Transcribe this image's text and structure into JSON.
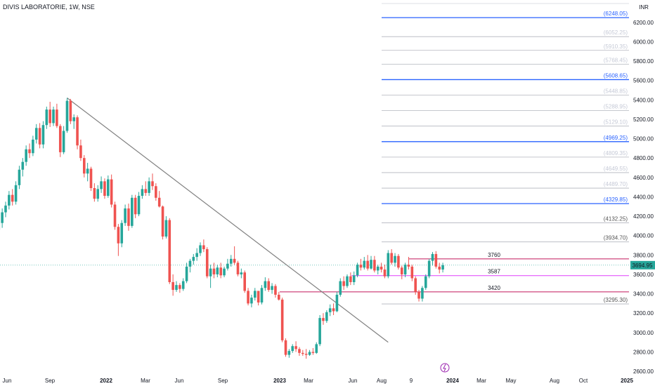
{
  "header": {
    "title": "DIVIS LABORATORIE, 1W, NSE",
    "currency": "INR"
  },
  "colors": {
    "up": "#26a69a",
    "down": "#ef5350",
    "fib_blue": "#2962ff",
    "trend": "#808080",
    "magenta": "#e040fb",
    "crimson": "#c2185b"
  },
  "chart_data": {
    "type": "candlestick",
    "title": "DIVIS LABORATORIE, 1W, NSE",
    "ylim": [
      2600,
      6350
    ],
    "y_ticks": [
      2600,
      2800,
      3000,
      3200,
      3400,
      3600,
      3800,
      4000,
      4200,
      4400,
      4600,
      4800,
      5000,
      5200,
      5400,
      5600,
      5800,
      6000,
      6200
    ],
    "y_tick_labels": [
      "2600.00",
      "2800.00",
      "3000.00",
      "3200.00",
      "3400.00",
      "3600.00",
      "3800.00",
      "4000.00",
      "4200.00",
      "4400.00",
      "4600.00",
      "4800.00",
      "5000.00",
      "5200.00",
      "5400.00",
      "5600.00",
      "5800.00",
      "6000.00",
      "6200.00"
    ],
    "x_ticks": [
      "Jun",
      "Sep",
      "2022",
      "Mar",
      "Jun",
      "Sep",
      "2023",
      "Mar",
      "Jun",
      "Aug",
      "9",
      "2024",
      "Mar",
      "May",
      "Aug",
      "Oct",
      "2025"
    ],
    "bold_x_ticks": [
      "2022",
      "2023",
      "2024",
      "2025"
    ],
    "last_price": "3694.95",
    "horizontal_levels": [
      {
        "label": "3760",
        "value": 3760,
        "color": "#c2185b"
      },
      {
        "label": "3587",
        "value": 3587,
        "color": "#e040fb"
      },
      {
        "label": "3420",
        "value": 3420,
        "color": "#c2185b"
      }
    ],
    "fib_levels": [
      {
        "label": "(6248.05)",
        "value": 6248.05,
        "prominent": true
      },
      {
        "label": "(6052.25)",
        "value": 6052.25,
        "prominent": false
      },
      {
        "label": "(5910.35)",
        "value": 5910.35,
        "prominent": false
      },
      {
        "label": "(5768.45)",
        "value": 5768.45,
        "prominent": false
      },
      {
        "label": "(5608.65)",
        "value": 5608.65,
        "prominent": true
      },
      {
        "label": "(5448.85)",
        "value": 5448.85,
        "prominent": false
      },
      {
        "label": "(5288.95)",
        "value": 5288.95,
        "prominent": false
      },
      {
        "label": "(5129.10)",
        "value": 5129.1,
        "prominent": false
      },
      {
        "label": "(4969.25)",
        "value": 4969.25,
        "prominent": true
      },
      {
        "label": "(4809.35)",
        "value": 4809.35,
        "prominent": false
      },
      {
        "label": "(4649.55)",
        "value": 4649.55,
        "prominent": false
      },
      {
        "label": "(4489.70)",
        "value": 4489.7,
        "prominent": false
      },
      {
        "label": "(4329.85)",
        "value": 4329.85,
        "prominent": true
      },
      {
        "label": "(4132.25)",
        "value": 4132.25,
        "prominent": false
      },
      {
        "label": "(3934.70)",
        "value": 3934.7,
        "prominent": false
      },
      {
        "label": "(3295.30)",
        "value": 3295.3,
        "prominent": false
      }
    ],
    "trendline": {
      "from": [
        "2021-10-04",
        5420
      ],
      "to": [
        "2023-07-24",
        2900
      ]
    },
    "candles": [
      [
        "2021-05-17",
        4060,
        4180,
        3990,
        4130
      ],
      [
        "2021-05-24",
        4130,
        4280,
        4080,
        4240
      ],
      [
        "2021-05-31",
        4240,
        4350,
        4190,
        4310
      ],
      [
        "2021-06-07",
        4310,
        4460,
        4270,
        4420
      ],
      [
        "2021-06-14",
        4420,
        4480,
        4310,
        4350
      ],
      [
        "2021-06-21",
        4350,
        4560,
        4320,
        4520
      ],
      [
        "2021-06-28",
        4520,
        4720,
        4480,
        4680
      ],
      [
        "2021-07-05",
        4680,
        4800,
        4610,
        4760
      ],
      [
        "2021-07-12",
        4760,
        4930,
        4720,
        4890
      ],
      [
        "2021-07-19",
        4890,
        4950,
        4800,
        4850
      ],
      [
        "2021-07-26",
        4850,
        5030,
        4820,
        4990
      ],
      [
        "2021-08-02",
        4990,
        5150,
        4950,
        5110
      ],
      [
        "2021-08-09",
        5110,
        5160,
        4900,
        4940
      ],
      [
        "2021-08-16",
        4940,
        5180,
        4900,
        5140
      ],
      [
        "2021-08-23",
        5140,
        5330,
        5100,
        5300
      ],
      [
        "2021-08-30",
        5300,
        5380,
        5120,
        5160
      ],
      [
        "2021-09-06",
        5160,
        5330,
        5130,
        5300
      ],
      [
        "2021-09-13",
        5300,
        5360,
        5110,
        5130
      ],
      [
        "2021-09-20",
        5130,
        5150,
        4810,
        4860
      ],
      [
        "2021-09-27",
        4860,
        5130,
        4840,
        5080
      ],
      [
        "2021-10-04",
        5080,
        5420,
        5060,
        5390
      ],
      [
        "2021-10-11",
        5390,
        5410,
        5150,
        5180
      ],
      [
        "2021-10-18",
        5180,
        5250,
        5100,
        5220
      ],
      [
        "2021-10-25",
        5220,
        5240,
        4890,
        4930
      ],
      [
        "2021-11-01",
        4930,
        4990,
        4770,
        4800
      ],
      [
        "2021-11-08",
        4800,
        4830,
        4600,
        4640
      ],
      [
        "2021-11-15",
        4640,
        4750,
        4560,
        4690
      ],
      [
        "2021-11-22",
        4690,
        4710,
        4460,
        4490
      ],
      [
        "2021-11-29",
        4490,
        4540,
        4350,
        4380
      ],
      [
        "2021-12-06",
        4380,
        4520,
        4350,
        4480
      ],
      [
        "2021-12-13",
        4480,
        4610,
        4440,
        4560
      ],
      [
        "2021-12-20",
        4560,
        4590,
        4380,
        4410
      ],
      [
        "2021-12-27",
        4410,
        4620,
        4390,
        4580
      ],
      [
        "2022-01-03",
        4580,
        4630,
        4290,
        4320
      ],
      [
        "2022-01-10",
        4320,
        4350,
        4060,
        4090
      ],
      [
        "2022-01-17",
        4090,
        4120,
        3790,
        3920
      ],
      [
        "2022-01-24",
        3920,
        4160,
        3880,
        4130
      ],
      [
        "2022-01-31",
        4130,
        4320,
        4100,
        4280
      ],
      [
        "2022-02-07",
        4280,
        4330,
        4050,
        4100
      ],
      [
        "2022-02-14",
        4100,
        4420,
        4080,
        4390
      ],
      [
        "2022-02-21",
        4390,
        4420,
        4180,
        4220
      ],
      [
        "2022-02-28",
        4220,
        4450,
        4200,
        4410
      ],
      [
        "2022-03-07",
        4410,
        4520,
        4380,
        4480
      ],
      [
        "2022-03-14",
        4480,
        4560,
        4410,
        4440
      ],
      [
        "2022-03-21",
        4440,
        4600,
        4410,
        4560
      ],
      [
        "2022-03-28",
        4560,
        4640,
        4470,
        4510
      ],
      [
        "2022-04-04",
        4510,
        4540,
        4360,
        4390
      ],
      [
        "2022-04-11",
        4390,
        4460,
        4290,
        4300
      ],
      [
        "2022-04-18",
        4300,
        4310,
        3960,
        3990
      ],
      [
        "2022-04-25",
        3990,
        4200,
        3970,
        4160
      ],
      [
        "2022-05-02",
        4160,
        4180,
        3500,
        3520
      ],
      [
        "2022-05-09",
        3520,
        3600,
        3380,
        3440
      ],
      [
        "2022-05-16",
        3440,
        3530,
        3420,
        3490
      ],
      [
        "2022-05-23",
        3490,
        3510,
        3410,
        3450
      ],
      [
        "2022-05-30",
        3450,
        3560,
        3430,
        3530
      ],
      [
        "2022-06-06",
        3530,
        3720,
        3510,
        3680
      ],
      [
        "2022-06-13",
        3680,
        3760,
        3620,
        3740
      ],
      [
        "2022-06-20",
        3740,
        3810,
        3700,
        3780
      ],
      [
        "2022-06-27",
        3780,
        3870,
        3740,
        3820
      ],
      [
        "2022-07-04",
        3820,
        3930,
        3790,
        3900
      ],
      [
        "2022-07-11",
        3900,
        3960,
        3830,
        3860
      ],
      [
        "2022-07-18",
        3860,
        3880,
        3560,
        3580
      ],
      [
        "2022-07-25",
        3580,
        3700,
        3460,
        3660
      ],
      [
        "2022-08-01",
        3660,
        3720,
        3560,
        3600
      ],
      [
        "2022-08-08",
        3600,
        3700,
        3570,
        3670
      ],
      [
        "2022-08-15",
        3670,
        3720,
        3560,
        3590
      ],
      [
        "2022-08-22",
        3590,
        3680,
        3570,
        3660
      ],
      [
        "2022-08-29",
        3660,
        3760,
        3640,
        3710
      ],
      [
        "2022-09-05",
        3710,
        3800,
        3680,
        3760
      ],
      [
        "2022-09-12",
        3760,
        3890,
        3700,
        3720
      ],
      [
        "2022-09-19",
        3720,
        3740,
        3580,
        3600
      ],
      [
        "2022-09-26",
        3600,
        3660,
        3560,
        3620
      ],
      [
        "2022-10-03",
        3620,
        3640,
        3410,
        3430
      ],
      [
        "2022-10-10",
        3430,
        3460,
        3280,
        3300
      ],
      [
        "2022-10-17",
        3300,
        3390,
        3260,
        3360
      ],
      [
        "2022-10-24",
        3360,
        3460,
        3330,
        3430
      ],
      [
        "2022-10-31",
        3430,
        3420,
        3280,
        3310
      ],
      [
        "2022-11-07",
        3310,
        3490,
        3290,
        3460
      ],
      [
        "2022-11-14",
        3460,
        3570,
        3430,
        3530
      ],
      [
        "2022-11-21",
        3530,
        3560,
        3420,
        3440
      ],
      [
        "2022-11-28",
        3440,
        3510,
        3400,
        3480
      ],
      [
        "2022-12-05",
        3480,
        3500,
        3360,
        3390
      ],
      [
        "2022-12-12",
        3390,
        3420,
        3330,
        3340
      ],
      [
        "2022-12-19",
        3340,
        3360,
        2900,
        2920
      ],
      [
        "2022-12-26",
        2920,
        2940,
        2750,
        2770
      ],
      [
        "2023-01-02",
        2770,
        2830,
        2740,
        2810
      ],
      [
        "2023-01-09",
        2810,
        2880,
        2790,
        2860
      ],
      [
        "2023-01-16",
        2860,
        2910,
        2800,
        2830
      ],
      [
        "2023-01-23",
        2830,
        2850,
        2760,
        2790
      ],
      [
        "2023-01-30",
        2790,
        2820,
        2760,
        2780
      ],
      [
        "2023-02-06",
        2780,
        2830,
        2730,
        2770
      ],
      [
        "2023-02-13",
        2770,
        2820,
        2760,
        2800
      ],
      [
        "2023-02-20",
        2800,
        2840,
        2770,
        2790
      ],
      [
        "2023-02-27",
        2790,
        2900,
        2780,
        2880
      ],
      [
        "2023-03-06",
        2880,
        3180,
        2860,
        3150
      ],
      [
        "2023-03-13",
        3150,
        3200,
        3080,
        3120
      ],
      [
        "2023-03-20",
        3120,
        3230,
        3100,
        3210
      ],
      [
        "2023-03-27",
        3210,
        3290,
        3170,
        3250
      ],
      [
        "2023-04-03",
        3250,
        3300,
        3180,
        3220
      ],
      [
        "2023-04-10",
        3220,
        3420,
        3210,
        3390
      ],
      [
        "2023-04-17",
        3390,
        3560,
        3370,
        3530
      ],
      [
        "2023-04-24",
        3530,
        3580,
        3440,
        3480
      ],
      [
        "2023-05-01",
        3480,
        3600,
        3460,
        3580
      ],
      [
        "2023-05-08",
        3580,
        3620,
        3490,
        3520
      ],
      [
        "2023-05-15",
        3520,
        3630,
        3490,
        3590
      ],
      [
        "2023-05-22",
        3590,
        3720,
        3570,
        3700
      ],
      [
        "2023-05-29",
        3700,
        3760,
        3640,
        3670
      ],
      [
        "2023-06-05",
        3670,
        3780,
        3650,
        3740
      ],
      [
        "2023-06-12",
        3740,
        3800,
        3640,
        3660
      ],
      [
        "2023-06-19",
        3660,
        3790,
        3650,
        3750
      ],
      [
        "2023-06-26",
        3750,
        3790,
        3620,
        3640
      ],
      [
        "2023-07-03",
        3640,
        3700,
        3600,
        3680
      ],
      [
        "2023-07-10",
        3680,
        3720,
        3620,
        3650
      ],
      [
        "2023-07-17",
        3650,
        3700,
        3560,
        3580
      ],
      [
        "2023-07-24",
        3580,
        3850,
        3560,
        3820
      ],
      [
        "2023-07-31",
        3820,
        3860,
        3700,
        3720
      ],
      [
        "2023-08-07",
        3720,
        3820,
        3680,
        3790
      ],
      [
        "2023-08-14",
        3790,
        3810,
        3650,
        3670
      ],
      [
        "2023-08-21",
        3670,
        3690,
        3550,
        3600
      ],
      [
        "2023-08-28",
        3600,
        3720,
        3570,
        3700
      ],
      [
        "2023-09-04",
        3700,
        3780,
        3650,
        3680
      ],
      [
        "2023-09-11",
        3680,
        3700,
        3530,
        3560
      ],
      [
        "2023-09-18",
        3560,
        3580,
        3390,
        3420
      ],
      [
        "2023-09-25",
        3420,
        3440,
        3320,
        3350
      ],
      [
        "2023-10-02",
        3350,
        3480,
        3320,
        3460
      ],
      [
        "2023-10-09",
        3460,
        3600,
        3440,
        3580
      ],
      [
        "2023-10-16",
        3580,
        3760,
        3560,
        3740
      ],
      [
        "2023-10-23",
        3740,
        3830,
        3690,
        3810
      ],
      [
        "2023-10-30",
        3810,
        3840,
        3660,
        3680
      ],
      [
        "2023-11-06",
        3680,
        3720,
        3610,
        3650
      ],
      [
        "2023-11-13",
        3650,
        3720,
        3620,
        3694.95
      ]
    ]
  }
}
